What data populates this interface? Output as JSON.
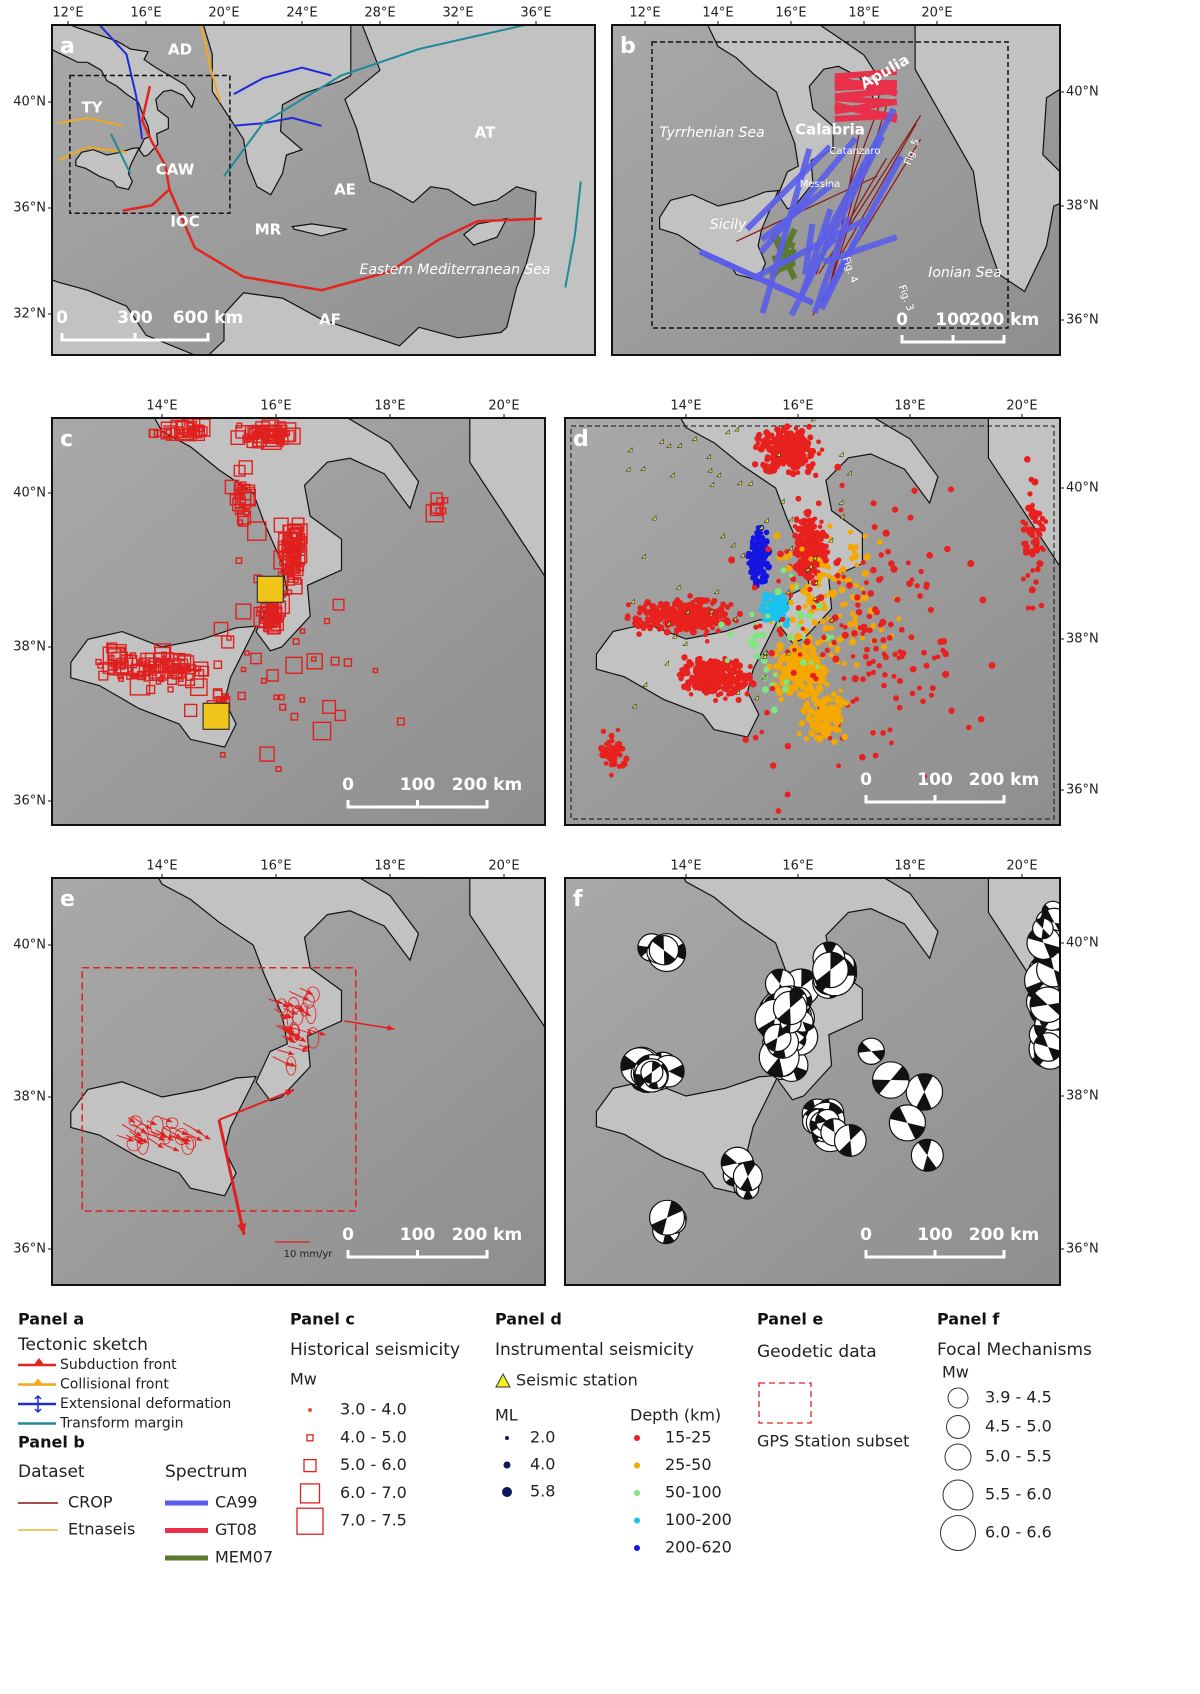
{
  "panels": [
    {
      "label": "a",
      "top_ticks": [
        "12°E",
        "16°E",
        "20°E",
        "24°E",
        "28°E",
        "32°E",
        "36°E"
      ],
      "side_ticks": [
        "40°N",
        "36°N",
        "32°N"
      ],
      "places": [
        "AD",
        "TY",
        "CAW",
        "AE",
        "AT",
        "IOC",
        "MR",
        "Eastern Mediterranean Sea",
        "AF"
      ],
      "scale": [
        "0",
        "300",
        "600 km"
      ]
    },
    {
      "label": "b",
      "top_ticks": [
        "12°E",
        "14°E",
        "16°E",
        "18°E",
        "20°E"
      ],
      "side_ticks": [
        "40°N",
        "38°N",
        "36°N"
      ],
      "places": [
        "Apulia",
        "Tyrrhenian Sea",
        "Calabria",
        "Catanzaro",
        "Messina",
        "Sicily",
        "Ionian Sea",
        "Fig. 5",
        "Fig. 4",
        "Fig. 3"
      ],
      "scale": [
        "0",
        "100",
        "200 km"
      ]
    },
    {
      "label": "c",
      "top_ticks": [
        "14°E",
        "16°E",
        "18°E",
        "20°E"
      ],
      "side_ticks": [
        "40°N",
        "38°N",
        "36°N"
      ],
      "scale": [
        "0",
        "100",
        "200 km"
      ]
    },
    {
      "label": "d",
      "top_ticks": [
        "14°E",
        "16°E",
        "18°E",
        "20°E"
      ],
      "side_ticks": [
        "40°N",
        "38°N",
        "36°N"
      ],
      "scale": [
        "0",
        "100",
        "200 km"
      ]
    },
    {
      "label": "e",
      "top_ticks": [
        "14°E",
        "16°E",
        "18°E",
        "20°E"
      ],
      "side_ticks": [
        "40°N",
        "38°N",
        "36°N"
      ],
      "places": [
        "10 mm/yr"
      ],
      "scale": [
        "0",
        "100",
        "200 km"
      ]
    },
    {
      "label": "f",
      "top_ticks": [
        "14°E",
        "16°E",
        "18°E",
        "20°E"
      ],
      "side_ticks": [
        "40°N",
        "38°N",
        "36°N"
      ],
      "scale": [
        "0",
        "100",
        "200 km"
      ]
    }
  ],
  "legend": {
    "a": {
      "heading": "Panel a",
      "title": "Tectonic sketch",
      "items": [
        {
          "label": "Subduction front",
          "color": "#e3241f"
        },
        {
          "label": "Collisional front",
          "color": "#f2a91c"
        },
        {
          "label": "Extensional deformation",
          "color": "#1f2bd6"
        },
        {
          "label": "Transform margin",
          "color": "#1f8a99"
        }
      ]
    },
    "b": {
      "heading": "Panel b",
      "dataset_title": "Dataset",
      "dataset": [
        {
          "label": "CROP",
          "color": "#8b1414"
        },
        {
          "label": "Etnaseis",
          "color": "#f2b233"
        }
      ],
      "spectrum_title": "Spectrum",
      "spectrum": [
        {
          "label": "CA99",
          "color": "#5b5ee8"
        },
        {
          "label": "GT08",
          "color": "#e8304a"
        },
        {
          "label": "MEM07",
          "color": "#5a7a2e"
        }
      ]
    },
    "c": {
      "heading": "Panel c",
      "title": "Historical seismicity",
      "unit": "Mw",
      "items": [
        "3.0 - 4.0",
        "4.0 - 5.0",
        "5.0 - 6.0",
        "6.0 - 7.0",
        "7.0 - 7.5"
      ]
    },
    "d": {
      "heading": "Panel d",
      "title": "Instrumental seismicity",
      "station": "Seismic station",
      "ml_title": "ML",
      "ml": [
        "2.0",
        "4.0",
        "5.8"
      ],
      "depth_title": "Depth (km)",
      "depth": [
        {
          "label": "15-25",
          "color": "#e8201e"
        },
        {
          "label": "25-50",
          "color": "#f5a800"
        },
        {
          "label": "50-100",
          "color": "#7ee87e"
        },
        {
          "label": "100-200",
          "color": "#19c2ef"
        },
        {
          "label": "200-620",
          "color": "#1515e0"
        }
      ]
    },
    "e": {
      "heading": "Panel e",
      "title": "Geodetic data",
      "item": "GPS Station subset"
    },
    "f": {
      "heading": "Panel f",
      "title": "Focal Mechanisms",
      "unit": "Mw",
      "items": [
        "3.9 - 4.5",
        "4.5 - 5.0",
        "5.0 - 5.5",
        "5.5 - 6.0",
        "6.0 - 6.6"
      ]
    }
  }
}
